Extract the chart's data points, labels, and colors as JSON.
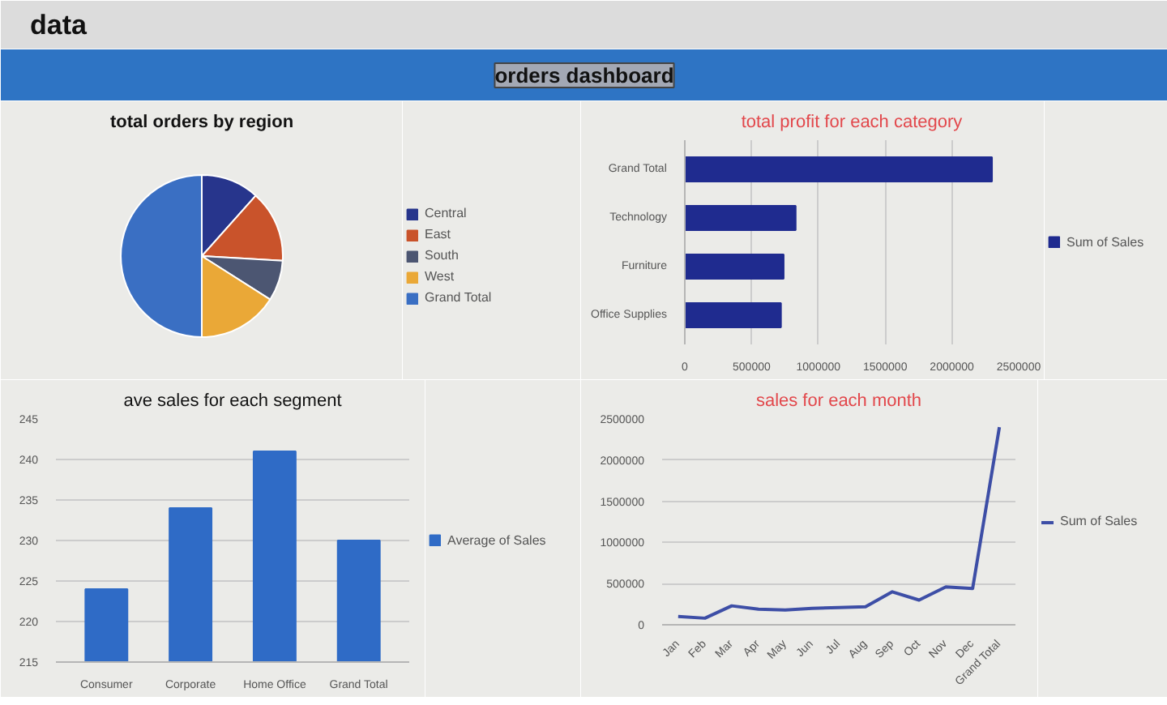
{
  "chart_data": [
    {
      "type": "pie",
      "title": "total orders by region",
      "annotations": [
        "data",
        "orders dashboard"
      ],
      "categories": [
        "Central",
        "East",
        "South",
        "West",
        "Grand Total"
      ],
      "values": [
        11.6,
        14.3,
        8.1,
        16.0,
        50.0
      ],
      "colors": [
        "#27358c",
        "#c9532b",
        "#4c5672",
        "#eaa837",
        "#3a6fc3"
      ],
      "legend": "right"
    },
    {
      "type": "bar",
      "orientation": "horizontal",
      "title": "total profit for each category",
      "categories": [
        "Grand Total",
        "Technology",
        "Furniture",
        "Office Supplies"
      ],
      "series": [
        {
          "name": "Sum of Sales",
          "color": "#1f2b8f",
          "values": [
            2300000,
            830000,
            740000,
            720000
          ]
        }
      ],
      "xlim": [
        0,
        2500000
      ],
      "xticks": [
        0,
        500000,
        1000000,
        1500000,
        2000000,
        2500000
      ],
      "grid": "x",
      "legend": "right"
    },
    {
      "type": "bar",
      "title": "ave sales for each segment",
      "categories": [
        "Consumer",
        "Corporate",
        "Home Office",
        "Grand Total"
      ],
      "series": [
        {
          "name": "Average of Sales",
          "color": "#2f6bc6",
          "values": [
            224,
            234,
            241,
            230
          ]
        }
      ],
      "ylim": [
        215,
        245
      ],
      "yticks": [
        215,
        220,
        225,
        230,
        235,
        240,
        245
      ],
      "grid": "y",
      "legend": "right"
    },
    {
      "type": "line",
      "title": "sales for each month",
      "categories": [
        "Jan",
        "Feb",
        "Mar",
        "Apr",
        "May",
        "Jun",
        "Jul",
        "Aug",
        "Sep",
        "Oct",
        "Nov",
        "Dec",
        "Grand Total"
      ],
      "series": [
        {
          "name": "Sum of Sales",
          "color": "#3d4ea6",
          "values": [
            100000,
            80000,
            230000,
            190000,
            180000,
            200000,
            210000,
            220000,
            400000,
            300000,
            460000,
            440000,
            2400000
          ]
        }
      ],
      "ylim": [
        0,
        2500000
      ],
      "yticks": [
        0,
        500000,
        1000000,
        1500000,
        2000000,
        2500000
      ],
      "grid": "y",
      "legend": "right"
    }
  ]
}
